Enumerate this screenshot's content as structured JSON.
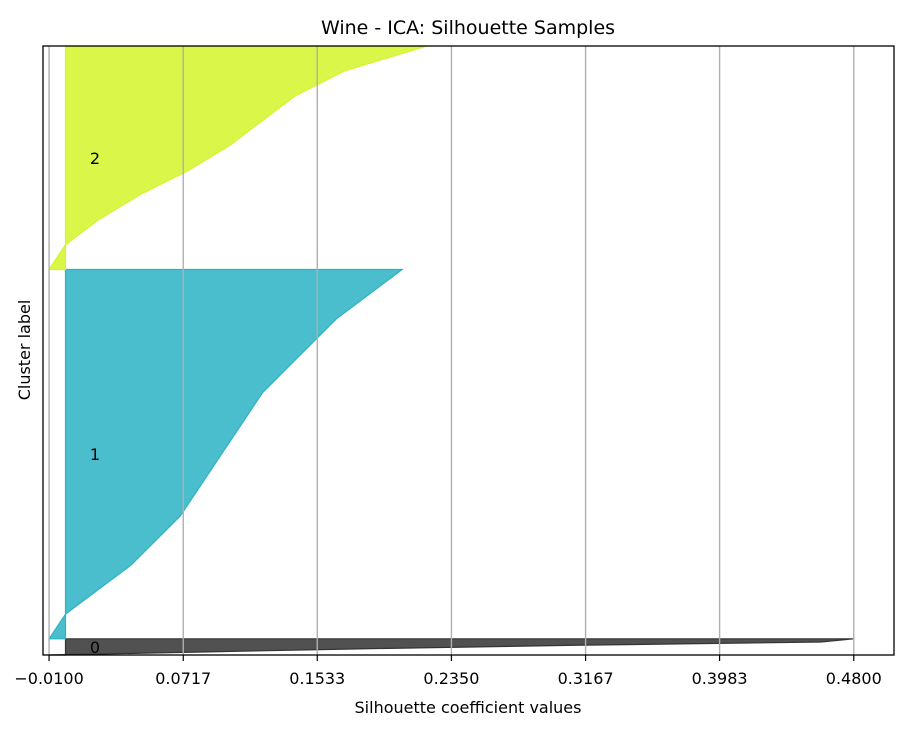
{
  "chart_data": {
    "type": "area",
    "subtype": "silhouette",
    "title": "Wine - ICA: Silhouette Samples",
    "xlabel": "Silhouette coefficient values",
    "ylabel": "Cluster label",
    "xlim": [
      -0.0137,
      0.5045
    ],
    "ylim": [
      0,
      188
    ],
    "grid": "vertical",
    "x_ticks": [
      -0.01,
      0.0717,
      0.1533,
      0.235,
      0.3167,
      0.3983,
      0.48
    ],
    "x_tick_labels": [
      "−0.0100",
      "0.0717",
      "0.1533",
      "0.2350",
      "0.3167",
      "0.3983",
      "0.4800"
    ],
    "clusters": [
      {
        "label": "0",
        "color": "#333333",
        "y_start": 0,
        "y_end": 5,
        "silhouette_sorted_desc": [
          0.48,
          0.46,
          0.31,
          0.19,
          0.09,
          -0.01
        ]
      },
      {
        "label": "1",
        "color": "#2bb3c4",
        "y_start": 5,
        "y_end": 119,
        "silhouette_sorted_desc": [
          0.205,
          0.185,
          0.165,
          0.15,
          0.135,
          0.12,
          0.11,
          0.1,
          0.09,
          0.08,
          0.07,
          0.055,
          0.04,
          0.02,
          0.0,
          -0.01
        ]
      },
      {
        "label": "2",
        "color": "#d4f529",
        "y_start": 119,
        "y_end": 188,
        "silhouette_sorted_desc": [
          0.22,
          0.17,
          0.14,
          0.12,
          0.1,
          0.075,
          0.045,
          0.02,
          0.0,
          -0.01
        ]
      }
    ]
  }
}
